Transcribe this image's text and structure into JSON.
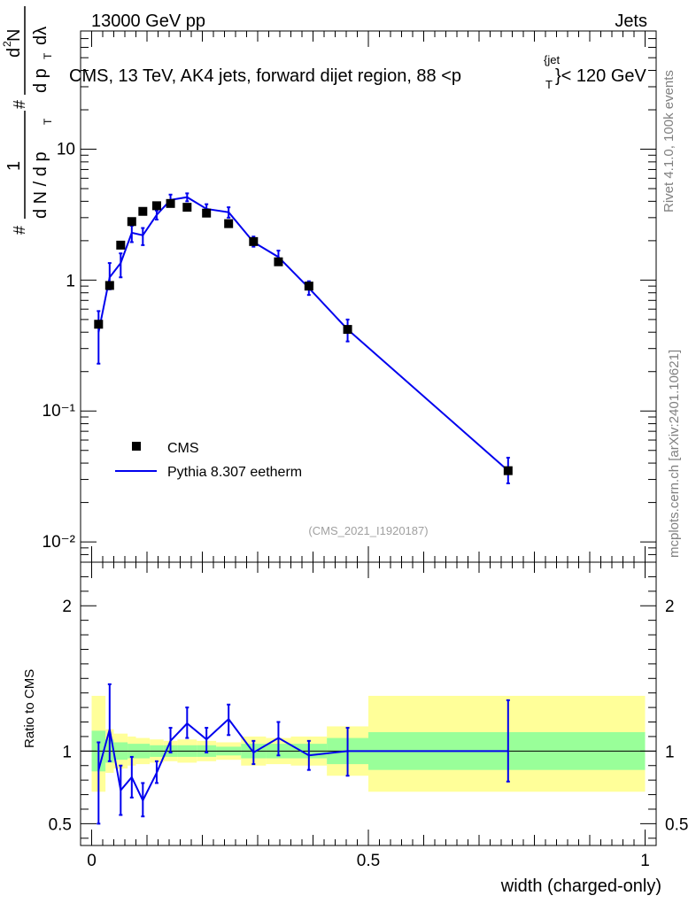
{
  "header": {
    "energy_label": "13000 GeV pp",
    "category_label": "Jets",
    "plot_title": "CMS, 13 TeV, AK4 jets, forward dijet region, 88 <p",
    "plot_title_sup": "{jet",
    "plot_title_sub": "T",
    "plot_title_end": "}< 120 GeV",
    "watermark": "(CMS_2021_I1920187)",
    "side_rivet": "Rivet 4.1.0,  100k events",
    "side_mcplots": "mcplots.cern.ch [arXiv:2401.10621]"
  },
  "colors": {
    "mc": "#0000ee",
    "data": "#000000",
    "band_outer": "#ffff99",
    "band_inner": "#99ff99"
  },
  "chart_data": [
    {
      "type": "scatter",
      "panel": "main",
      "yscale": "log",
      "ylabel": "# 1 / dN/dpT # d²N/dpT dλ",
      "ylabel_parts": [
        "1",
        "d N / d p",
        "T",
        "d",
        "2",
        "N",
        "d p",
        "T",
        "dλ",
        "#",
        "#"
      ],
      "xlim": [
        -0.02,
        1.02
      ],
      "ylim": [
        0.007,
        80
      ],
      "ytick_labels": [
        "10⁻²",
        "10⁻¹",
        "1",
        "10"
      ],
      "ytick_values": [
        0.01,
        0.1,
        1,
        10
      ],
      "legend_position": "lower-left",
      "series": [
        {
          "name": "CMS",
          "marker": "square",
          "x": [
            0.0125,
            0.0325,
            0.0525,
            0.0725,
            0.0925,
            0.1175,
            0.1425,
            0.1725,
            0.2075,
            0.2475,
            0.2925,
            0.3375,
            0.3925,
            0.4625,
            0.7525
          ],
          "y": [
            0.46,
            0.91,
            1.85,
            2.8,
            3.35,
            3.7,
            3.85,
            3.6,
            3.25,
            2.7,
            1.97,
            1.38,
            0.9,
            0.42,
            0.035
          ]
        },
        {
          "name": "Pythia 8.307 eetherm",
          "line": true,
          "x": [
            0.0125,
            0.0325,
            0.0525,
            0.0725,
            0.0925,
            0.1175,
            0.1425,
            0.1725,
            0.2075,
            0.2475,
            0.2925,
            0.3375,
            0.3925,
            0.4625,
            0.7525
          ],
          "y": [
            0.4,
            1.05,
            1.35,
            2.3,
            2.2,
            3.15,
            4.1,
            4.3,
            3.5,
            3.3,
            1.95,
            1.5,
            0.87,
            0.42,
            0.035
          ],
          "err_lo": [
            0.23,
            0.85,
            1.05,
            1.95,
            1.85,
            2.9,
            3.8,
            4.0,
            3.25,
            3.0,
            1.8,
            1.33,
            0.77,
            0.34,
            0.028
          ],
          "err_hi": [
            0.58,
            1.35,
            1.6,
            2.6,
            2.5,
            3.4,
            4.5,
            4.6,
            3.8,
            3.6,
            2.15,
            1.68,
            0.98,
            0.5,
            0.044
          ]
        }
      ]
    },
    {
      "type": "line",
      "panel": "ratio",
      "ylabel": "Ratio to CMS",
      "xlabel": "width (charged-only)",
      "xlim": [
        -0.02,
        1.02
      ],
      "ylim": [
        0.35,
        2.3
      ],
      "ytick_labels": [
        "0.5",
        "1",
        "2"
      ],
      "ytick_values": [
        0.5,
        1,
        2
      ],
      "xtick_labels": [
        "0",
        "0.5",
        "1"
      ],
      "xtick_values": [
        0,
        0.5,
        1
      ],
      "bands": {
        "edges": [
          0,
          0.025,
          0.04,
          0.065,
          0.08,
          0.105,
          0.13,
          0.155,
          0.19,
          0.225,
          0.27,
          0.315,
          0.36,
          0.425,
          0.5,
          1.0
        ],
        "outer_lo": [
          0.72,
          0.85,
          0.88,
          0.9,
          0.91,
          0.92,
          0.93,
          0.92,
          0.93,
          0.94,
          0.9,
          0.91,
          0.9,
          0.83,
          0.72
        ],
        "outer_hi": [
          1.38,
          1.15,
          1.12,
          1.1,
          1.09,
          1.08,
          1.07,
          1.08,
          1.07,
          1.06,
          1.1,
          1.09,
          1.1,
          1.17,
          1.38
        ],
        "inner_lo": [
          0.86,
          0.92,
          0.94,
          0.95,
          0.95,
          0.96,
          0.96,
          0.96,
          0.96,
          0.97,
          0.95,
          0.95,
          0.95,
          0.91,
          0.87
        ],
        "inner_hi": [
          1.14,
          1.08,
          1.06,
          1.05,
          1.05,
          1.04,
          1.04,
          1.04,
          1.04,
          1.03,
          1.05,
          1.05,
          1.05,
          1.09,
          1.13
        ]
      },
      "series": [
        {
          "name": "Pythia 8.307 eetherm",
          "x": [
            0.0125,
            0.0325,
            0.0525,
            0.0725,
            0.0925,
            0.1175,
            0.1425,
            0.1725,
            0.2075,
            0.2475,
            0.2925,
            0.3375,
            0.3925,
            0.4625,
            0.7525
          ],
          "y": [
            0.87,
            1.15,
            0.73,
            0.82,
            0.66,
            0.85,
            1.07,
            1.19,
            1.08,
            1.22,
            0.99,
            1.09,
            0.97,
            1.0,
            1.0
          ],
          "err_lo": [
            0.5,
            0.93,
            0.56,
            0.68,
            0.55,
            0.78,
            0.99,
            1.09,
            0.99,
            1.11,
            0.91,
            0.97,
            0.87,
            0.83,
            0.79
          ],
          "err_hi": [
            1.06,
            1.46,
            0.9,
            0.96,
            0.78,
            0.93,
            1.16,
            1.3,
            1.16,
            1.32,
            1.07,
            1.2,
            1.07,
            1.16,
            1.35
          ]
        }
      ]
    }
  ]
}
